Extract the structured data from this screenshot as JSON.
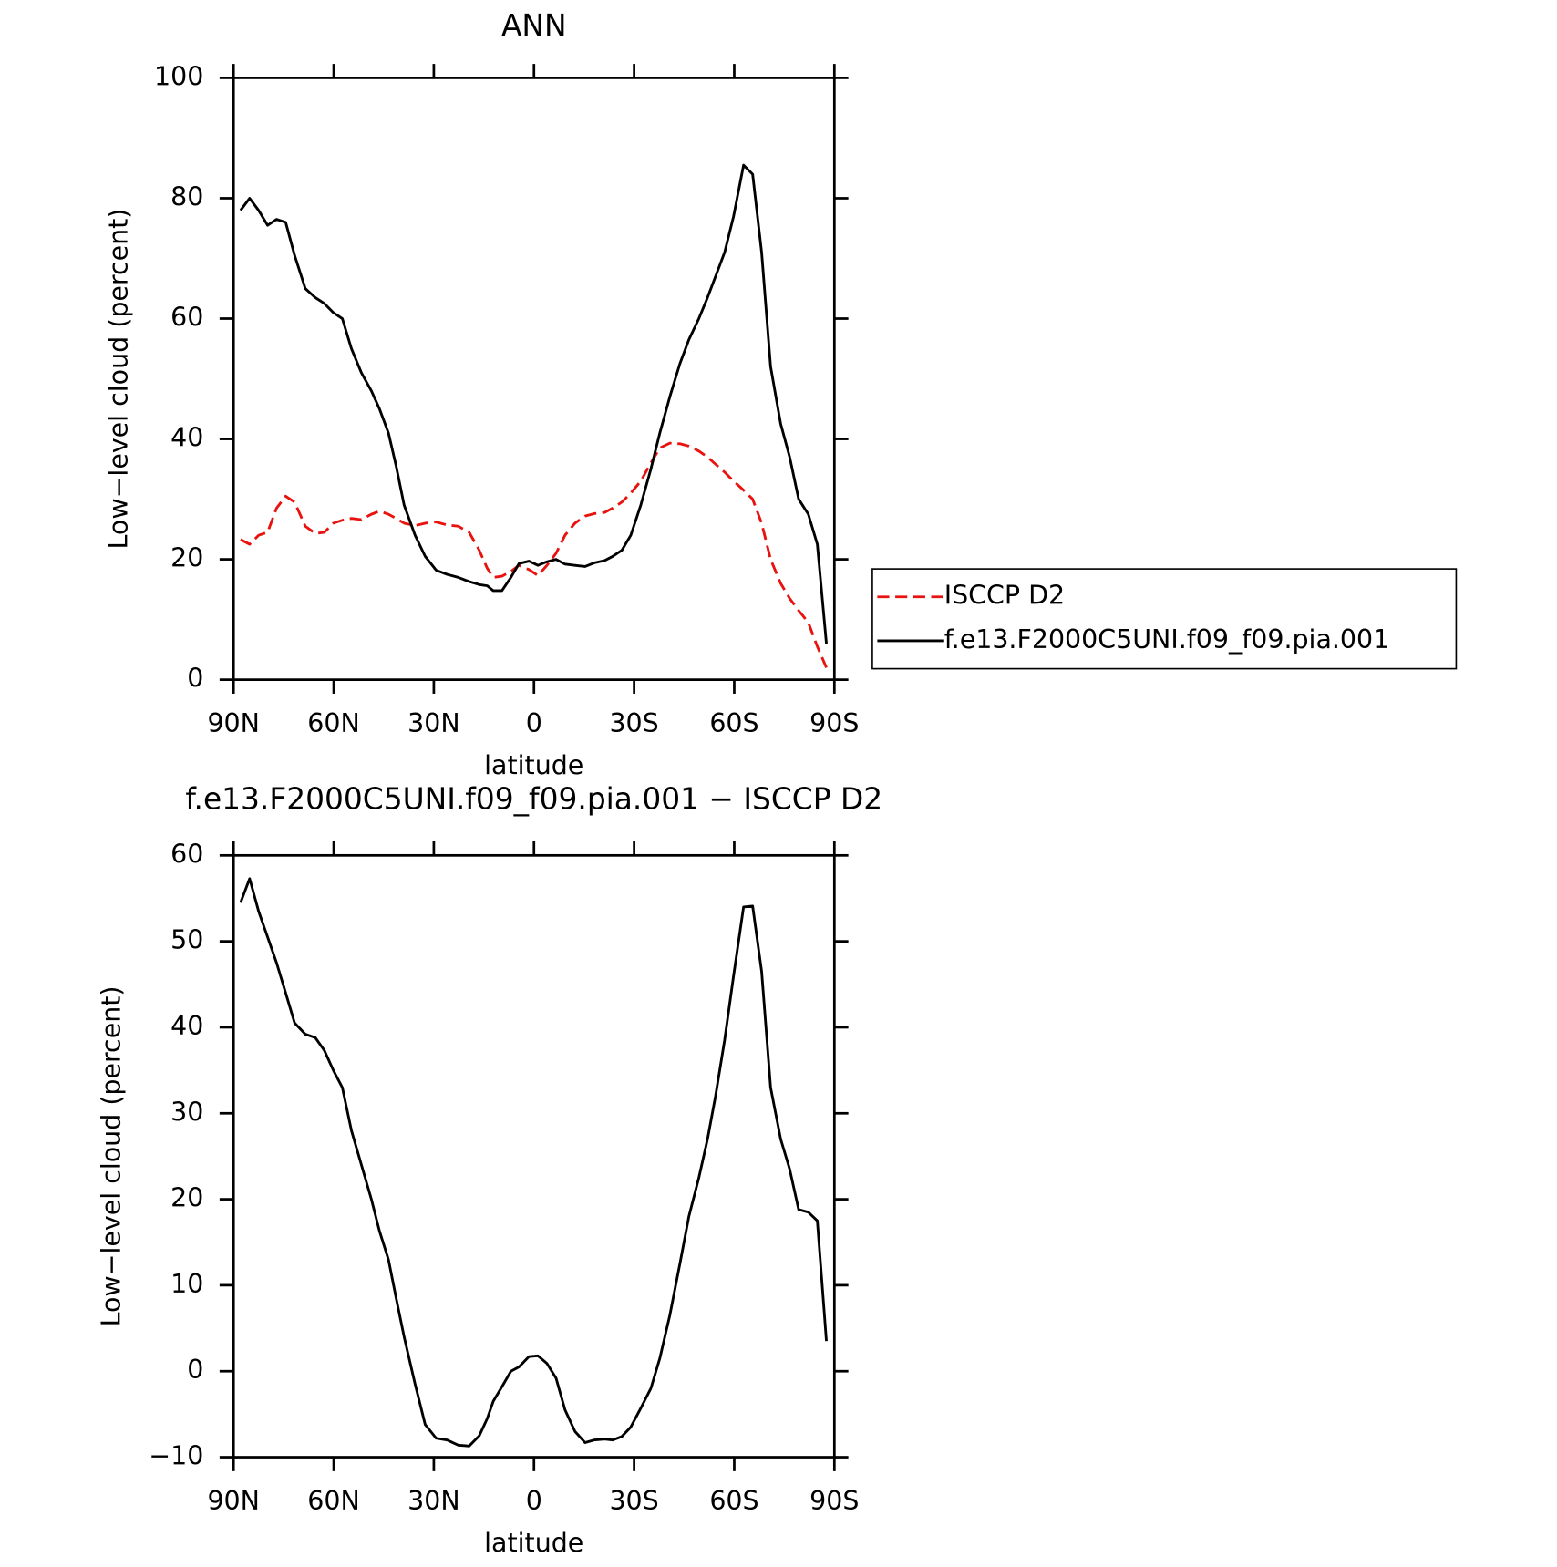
{
  "chart_data": [
    {
      "type": "line",
      "title": "ANN",
      "xlabel": "latitude",
      "ylabel": "Low−level cloud (percent)",
      "x": [
        87.9,
        85.2,
        82.5,
        79.8,
        77.1,
        74.4,
        71.7,
        68.5,
        65.5,
        62.8,
        60.1,
        57.4,
        54.7,
        51.7,
        48.7,
        46.3,
        43.6,
        41.3,
        38.9,
        35.6,
        32.6,
        29.3,
        26.0,
        22.7,
        19.4,
        16.4,
        14.0,
        12.2,
        9.6,
        6.9,
        4.5,
        1.5,
        -1.2,
        -3.9,
        -6.6,
        -9.3,
        -12.3,
        -15.3,
        -18.0,
        -21.2,
        -23.6,
        -26.3,
        -29.0,
        -32.0,
        -35.0,
        -37.7,
        -40.7,
        -43.7,
        -46.4,
        -49.4,
        -52.0,
        -54.4,
        -57.1,
        -59.8,
        -62.8,
        -65.5,
        -68.2,
        -70.9,
        -73.9,
        -76.6,
        -79.3,
        -82.2,
        -84.9,
        -87.6
      ],
      "series": [
        {
          "name": "ISCCP D2",
          "color": "#e8120f",
          "dash": true,
          "values": [
            23.3,
            22.5,
            24,
            24.5,
            28.5,
            30.5,
            29.5,
            25.5,
            24.3,
            24.5,
            26,
            26.5,
            26.8,
            26.6,
            27.5,
            28,
            27.5,
            26.8,
            26,
            25.6,
            26,
            26.2,
            25.7,
            25.5,
            24.5,
            21.5,
            18.5,
            17,
            17.2,
            18,
            19,
            18.3,
            17.3,
            19,
            21,
            24,
            26,
            27.2,
            27.6,
            27.8,
            28.5,
            29.5,
            31,
            33,
            36,
            38.5,
            39.3,
            39.2,
            38.8,
            38,
            37,
            35.8,
            34.5,
            33,
            31.5,
            30,
            26,
            20,
            16,
            13.5,
            11.5,
            9.5,
            5.5,
            2
          ]
        },
        {
          "name": "f.e13.F2000C5UNI.f09_f09.pia.001",
          "color": "#000000",
          "dash": false,
          "values": [
            78,
            80,
            78,
            75.5,
            76.5,
            76,
            70.5,
            65,
            63.5,
            62.5,
            61,
            60,
            55,
            51,
            48,
            45,
            41,
            35.5,
            29,
            24,
            20.5,
            18.2,
            17.5,
            17,
            16.3,
            15.8,
            15.6,
            14.8,
            14.8,
            17,
            19.3,
            19.7,
            19,
            19.6,
            20,
            19.2,
            19,
            18.8,
            19.4,
            19.8,
            20.5,
            21.5,
            24,
            29,
            35,
            41,
            47,
            52.5,
            56.5,
            60,
            63.5,
            67,
            71,
            77,
            85.5,
            84,
            71,
            52,
            42.5,
            37,
            30,
            27.5,
            22.5,
            6
          ]
        }
      ],
      "xlim": [
        90,
        -90
      ],
      "xticks": [
        {
          "value": 90,
          "label": "90N"
        },
        {
          "value": 60,
          "label": "60N"
        },
        {
          "value": 30,
          "label": "30N"
        },
        0,
        {
          "value": -30,
          "label": "30S"
        },
        {
          "value": -60,
          "label": "60S"
        },
        {
          "value": -90,
          "label": "90S"
        }
      ],
      "ylim": [
        0,
        100
      ],
      "yticks": [
        0,
        20,
        40,
        60,
        80,
        100
      ],
      "legend": "right"
    },
    {
      "type": "line",
      "title": "f.e13.F2000C5UNI.f09_f09.pia.001 − ISCCP D2",
      "xlabel": "latitude",
      "ylabel": "Low−level cloud (percent)",
      "x": [
        87.9,
        85.2,
        82.5,
        79.8,
        77.1,
        74.4,
        71.7,
        68.5,
        65.5,
        62.8,
        60.1,
        57.4,
        54.7,
        51.7,
        48.7,
        46.3,
        43.6,
        41.3,
        38.9,
        35.6,
        32.6,
        29.3,
        26.0,
        22.7,
        19.4,
        16.4,
        14.0,
        12.2,
        9.6,
        6.9,
        4.5,
        1.5,
        -1.2,
        -3.9,
        -6.6,
        -9.3,
        -12.3,
        -15.3,
        -18.0,
        -21.2,
        -23.6,
        -26.3,
        -29.0,
        -32.0,
        -35.0,
        -37.7,
        -40.7,
        -43.7,
        -46.4,
        -49.4,
        -52.0,
        -54.4,
        -57.1,
        -59.8,
        -62.8,
        -65.5,
        -68.2,
        -70.9,
        -73.9,
        -76.6,
        -79.3,
        -82.2,
        -84.9,
        -87.6
      ],
      "series": [
        {
          "color": "#000000",
          "dash": false,
          "values": [
            54.5,
            57.3,
            53.5,
            50.5,
            47.5,
            44,
            40.5,
            39.2,
            38.8,
            37.3,
            35,
            33,
            28,
            24,
            20,
            16.3,
            13,
            8.5,
            4,
            -1.5,
            -6.2,
            -7.8,
            -8,
            -8.6,
            -8.7,
            -7.5,
            -5.5,
            -3.5,
            -1.8,
            0,
            0.5,
            1.7,
            1.8,
            0.9,
            -0.8,
            -4.5,
            -7,
            -8.3,
            -8,
            -7.9,
            -8,
            -7.6,
            -6.5,
            -4.3,
            -2,
            1.5,
            6.5,
            12.5,
            18,
            22.5,
            27,
            32,
            38.5,
            46,
            54,
            54.1,
            46.5,
            33,
            27,
            23.5,
            18.8,
            18.5,
            17.5,
            3.5
          ]
        }
      ],
      "xlim": [
        90,
        -90
      ],
      "xticks": [
        {
          "value": 90,
          "label": "90N"
        },
        {
          "value": 60,
          "label": "60N"
        },
        {
          "value": 30,
          "label": "30N"
        },
        0,
        {
          "value": -30,
          "label": "30S"
        },
        {
          "value": -60,
          "label": "60S"
        },
        {
          "value": -90,
          "label": "90S"
        }
      ],
      "ylim": [
        -10,
        60
      ],
      "yticks": [
        {
          "value": -10,
          "label": "−10"
        },
        0,
        10,
        20,
        30,
        40,
        50,
        60
      ]
    }
  ]
}
